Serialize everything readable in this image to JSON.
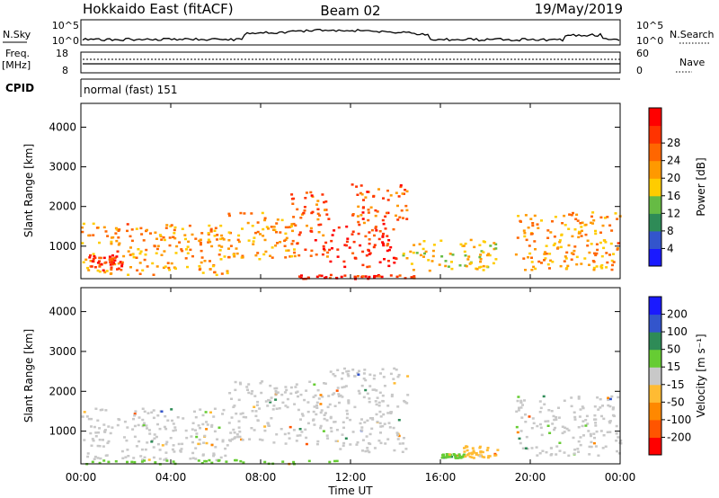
{
  "header": {
    "title": "Hokkaido East (fitACF)",
    "beam": "Beam 02",
    "date": "19/May/2019"
  },
  "strip_labels": {
    "nsky": "N.Sky",
    "nsearch": "N.Search",
    "freq": "Freq.",
    "freq_unit": "[MHz]",
    "nave": "Nave",
    "cpid": "CPID",
    "cpid_value": "normal (fast) 151",
    "nsky_ticks": [
      "10^5",
      "10^0"
    ],
    "nsearch_ticks": [
      "10^5",
      "10^0"
    ],
    "freq_ticks": [
      "18",
      "8"
    ],
    "nave_ticks": [
      "60",
      "0"
    ]
  },
  "colors": {
    "power": [
      "#1a1aff",
      "#3355cc",
      "#2e8b57",
      "#66bb44",
      "#ffcc00",
      "#ff9900",
      "#ff6600",
      "#ff3300",
      "#ff0000"
    ],
    "velocity": [
      "#ff0000",
      "#ff5500",
      "#ff8800",
      "#ffbb33",
      "#c8c8c8",
      "#66cc33",
      "#2e8b57",
      "#3355cc",
      "#1a1aff"
    ]
  },
  "chart_data": [
    {
      "type": "heatmap",
      "name": "power",
      "ylabel": "Slant Range [km]",
      "xlabel": "",
      "x_ticks": [],
      "y_ticks": [
        "1000",
        "2000",
        "3000",
        "4000"
      ],
      "y_values": [
        1000,
        2000,
        3000,
        4000
      ],
      "ylim": [
        180,
        4600
      ],
      "xlim": [
        0,
        24
      ],
      "colorbar": {
        "label": "Power [dB]",
        "ticks": [
          "4",
          "8",
          "12",
          "16",
          "20",
          "24",
          "28"
        ],
        "range": [
          0,
          32
        ]
      },
      "echo_regions": [
        {
          "t0": 0.0,
          "t1": 6.5,
          "r0": 300,
          "r1": 1600,
          "level": 20
        },
        {
          "t0": 0.3,
          "t1": 1.8,
          "r0": 400,
          "r1": 800,
          "level": 28
        },
        {
          "t0": 6.5,
          "t1": 9.5,
          "r0": 700,
          "r1": 1900,
          "level": 20
        },
        {
          "t0": 9.3,
          "t1": 11.0,
          "r0": 700,
          "r1": 2400,
          "level": 24
        },
        {
          "t0": 11.0,
          "t1": 14.0,
          "r0": 500,
          "r1": 1600,
          "level": 28
        },
        {
          "t0": 12.0,
          "t1": 14.5,
          "r0": 1600,
          "r1": 2600,
          "level": 24
        },
        {
          "t0": 14.3,
          "t1": 18.5,
          "r0": 400,
          "r1": 1200,
          "level": 16
        },
        {
          "t0": 19.3,
          "t1": 24.0,
          "r0": 400,
          "r1": 1900,
          "level": 20
        },
        {
          "t0": 9.5,
          "t1": 14.8,
          "r0": 200,
          "r1": 300,
          "level": 28
        }
      ]
    },
    {
      "type": "heatmap",
      "name": "velocity",
      "ylabel": "Slant Range [km]",
      "xlabel": "Time UT",
      "x_ticks": [
        "00:00",
        "04:00",
        "08:00",
        "12:00",
        "16:00",
        "20:00",
        "00:00"
      ],
      "x_values": [
        0,
        4,
        8,
        12,
        16,
        20,
        24
      ],
      "y_ticks": [
        "1000",
        "2000",
        "3000",
        "4000"
      ],
      "y_values": [
        1000,
        2000,
        3000,
        4000
      ],
      "ylim": [
        180,
        4600
      ],
      "xlim": [
        0,
        24
      ],
      "colorbar": {
        "label": "Velocity [m s⁻¹]",
        "ticks": [
          "200",
          "100",
          "50",
          "15",
          "-15",
          "-50",
          "-100",
          "-200"
        ],
        "range": [
          -250,
          250
        ]
      },
      "echo_regions": [
        {
          "t0": 0.0,
          "t1": 6.5,
          "r0": 300,
          "r1": 1600,
          "level": 0
        },
        {
          "t0": 6.5,
          "t1": 11.0,
          "r0": 700,
          "r1": 2300,
          "level": 0
        },
        {
          "t0": 11.0,
          "t1": 14.5,
          "r0": 500,
          "r1": 2600,
          "level": 0
        },
        {
          "t0": 16.0,
          "t1": 17.0,
          "r0": 350,
          "r1": 450,
          "level": 40
        },
        {
          "t0": 17.0,
          "t1": 18.5,
          "r0": 350,
          "r1": 650,
          "level": -70
        },
        {
          "t0": 19.3,
          "t1": 24.0,
          "r0": 400,
          "r1": 1900,
          "level": 0
        },
        {
          "t0": 0.0,
          "t1": 12.0,
          "r0": 200,
          "r1": 300,
          "level": 30
        }
      ]
    }
  ]
}
